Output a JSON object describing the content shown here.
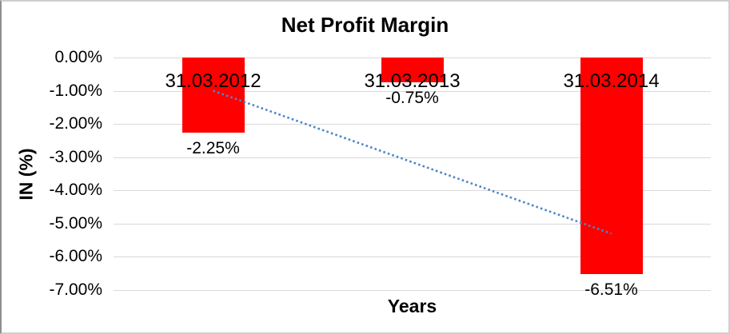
{
  "chart_data": {
    "type": "bar",
    "title": "Net Profit Margin",
    "xlabel": "Years",
    "ylabel": "IN (%)",
    "categories": [
      "31.03.2012",
      "31.03.2013",
      "31.03.2014"
    ],
    "series": [
      {
        "name": "Net Profit Margin",
        "values": [
          -2.25,
          -0.75,
          -6.51
        ]
      }
    ],
    "data_labels": [
      "-2.25%",
      "-0.75%",
      "-6.51%"
    ],
    "ylim": [
      -7,
      0
    ],
    "yticks": [
      {
        "label": "0.00%",
        "value": 0
      },
      {
        "label": "-1.00%",
        "value": -1
      },
      {
        "label": "-2.00%",
        "value": -2
      },
      {
        "label": "-3.00%",
        "value": -3
      },
      {
        "label": "-4.00%",
        "value": -4
      },
      {
        "label": "-5.00%",
        "value": -5
      },
      {
        "label": "-6.00%",
        "value": -6
      },
      {
        "label": "-7.00%",
        "value": -7
      }
    ],
    "grid": "horizontal",
    "legend": "none",
    "trendline": {
      "type": "linear",
      "style": "dotted",
      "start_value": -1.0,
      "end_value": -5.3
    },
    "colors": {
      "bar": "#FF0000",
      "trendline": "#4E86C8",
      "gridline": "#D9D9D9",
      "text": "#000000",
      "frame": "#CFCFCF"
    }
  }
}
